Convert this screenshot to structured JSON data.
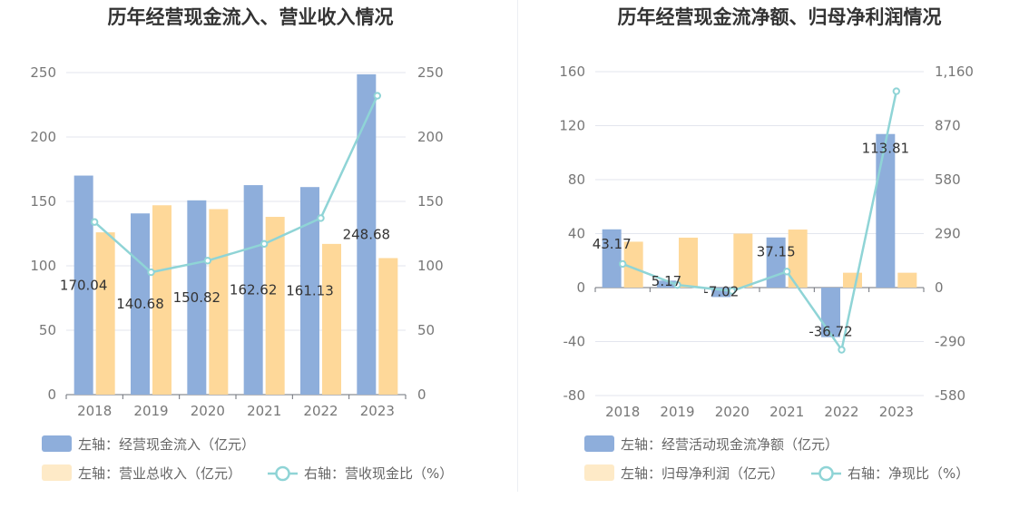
{
  "chart_data": [
    {
      "type": "bar",
      "title": "历年经营现金流入、营业收入情况",
      "categories": [
        "2018",
        "2019",
        "2020",
        "2021",
        "2022",
        "2023"
      ],
      "series": [
        {
          "name": "左轴：经营现金流入（亿元）",
          "type": "bar",
          "axis": "left",
          "color": "#8eaedb",
          "values": [
            170.04,
            140.68,
            150.82,
            162.62,
            161.13,
            248.68
          ],
          "labels": [
            "170.04",
            "140.68",
            "150.82",
            "162.62",
            "161.13",
            "248.68"
          ]
        },
        {
          "name": "左轴：营业总收入（亿元）",
          "type": "bar",
          "axis": "left",
          "color": "#fed899",
          "values": [
            126,
            147,
            144,
            138,
            117,
            106
          ]
        },
        {
          "name": "右轴：营收现金比（%）",
          "type": "line",
          "axis": "right",
          "color": "#8fd4d6",
          "values": [
            134,
            95,
            104,
            117,
            137,
            232
          ]
        }
      ],
      "y_left": {
        "min": 0,
        "max": 250,
        "ticks": [
          "0",
          "50",
          "100",
          "150",
          "200",
          "250"
        ]
      },
      "y_right": {
        "min": 0,
        "max": 250,
        "ticks": [
          "0",
          "50",
          "100",
          "150",
          "200",
          "250"
        ]
      },
      "grid": true,
      "legend_position": "bottom"
    },
    {
      "type": "bar",
      "title": "历年经营现金流净额、归母净利润情况",
      "categories": [
        "2018",
        "2019",
        "2020",
        "2021",
        "2022",
        "2023"
      ],
      "series": [
        {
          "name": "左轴：经营活动现金流净额（亿元）",
          "type": "bar",
          "axis": "left",
          "color": "#8eaedb",
          "values": [
            43.17,
            5.17,
            -7.02,
            37.15,
            -36.72,
            113.81
          ],
          "labels": [
            "43.17",
            "5.17",
            "-7.02",
            "37.15",
            "-36.72",
            "113.81"
          ]
        },
        {
          "name": "左轴：归母净利润（亿元）",
          "type": "bar",
          "axis": "left",
          "color": "#fed899",
          "values": [
            34,
            37,
            40,
            43,
            11,
            11
          ]
        },
        {
          "name": "右轴：净现比（%）",
          "type": "line",
          "axis": "right",
          "color": "#8fd4d6",
          "values": [
            127,
            14,
            -18,
            86,
            -334,
            1055
          ]
        }
      ],
      "y_left": {
        "min": -80,
        "max": 160,
        "ticks": [
          "-80",
          "-40",
          "0",
          "40",
          "80",
          "120",
          "160"
        ]
      },
      "y_right": {
        "min": -580,
        "max": 1160,
        "ticks": [
          "-580",
          "-290",
          "0",
          "290",
          "580",
          "870",
          "1,160"
        ]
      },
      "grid": true,
      "legend_position": "bottom"
    }
  ]
}
